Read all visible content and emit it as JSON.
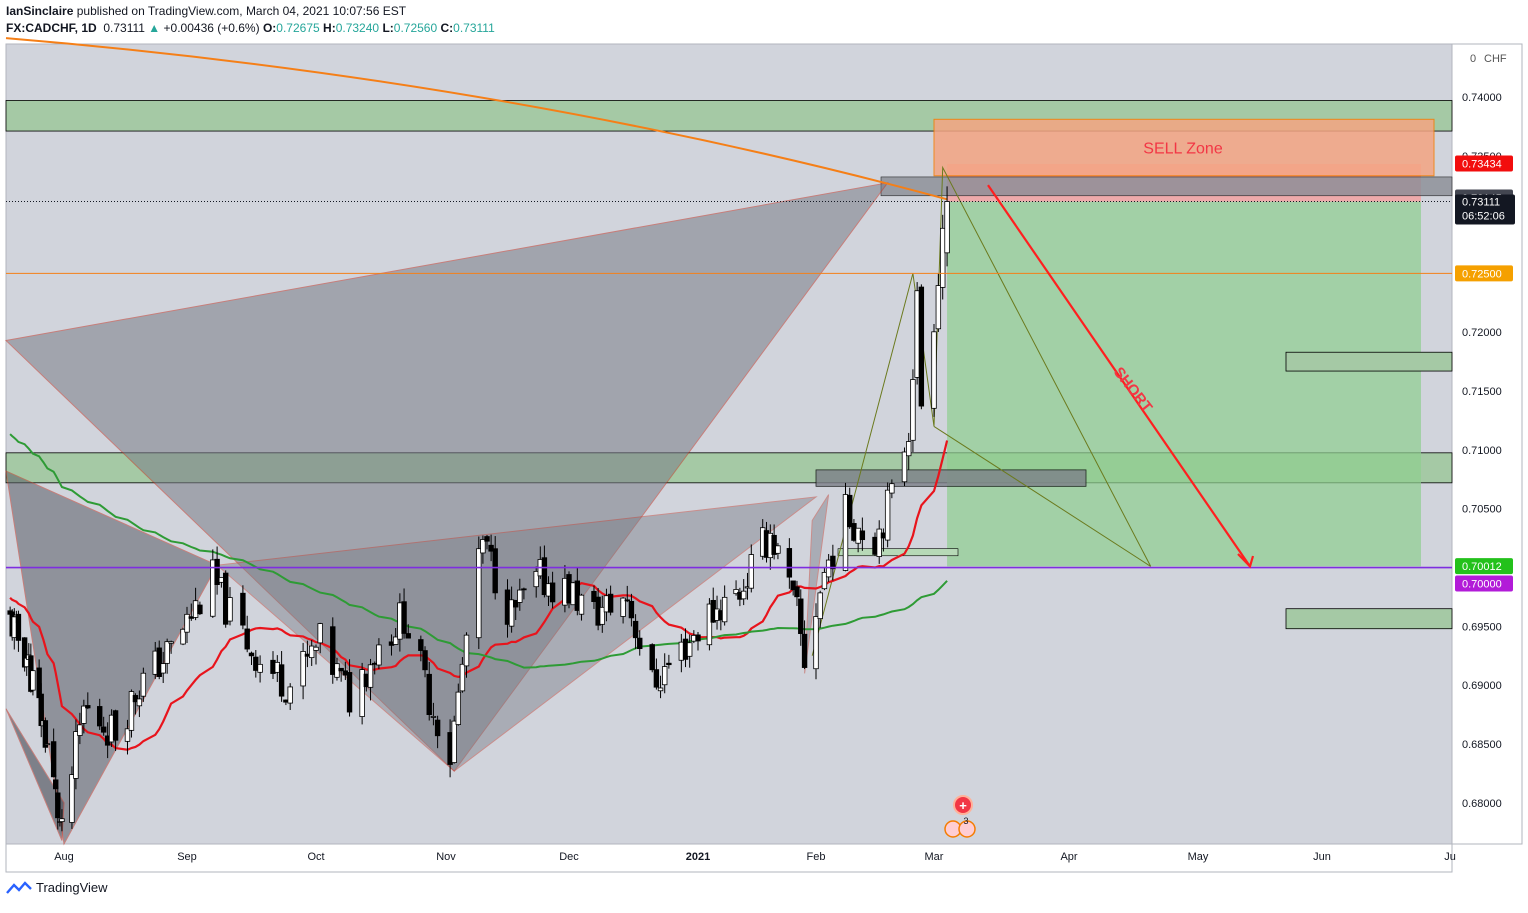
{
  "header": {
    "author": "IanSinclaire",
    "published": "published on TradingView.com, March 04, 2021 10:07:56 EST"
  },
  "symbol_line": {
    "symbol": "FX:CADCHF, 1D",
    "last": "0.73111",
    "change": "+0.00436 (+0.6%)",
    "o_label": "O:",
    "o": "0.72675",
    "h_label": "H:",
    "h": "0.73240",
    "l_label": "L:",
    "l": "0.72560",
    "c_label": "C:",
    "c": "0.73111"
  },
  "footer": {
    "brand": "TradingView"
  },
  "colors": {
    "background": "#d1d4dc",
    "up_candle": "#ffffff",
    "down_candle": "#000000",
    "ma_fast": "#e8141c",
    "ma_slow": "#2e9b35",
    "ma_long": "#f57f17",
    "sell_zone": "#f4a582",
    "target_zone": "#8fce8f",
    "support_line": "#7e2de0",
    "arrow": "#ff1f1f"
  },
  "chart_data": {
    "type": "candlestick",
    "currency": "CHF",
    "ylim": [
      0.6765,
      0.7445
    ],
    "y_ticks": [
      "0.68000",
      "0.68500",
      "0.69000",
      "0.69500",
      "0.70000",
      "0.70500",
      "0.71000",
      "0.71500",
      "0.72000",
      "0.72500",
      "0.73000",
      "0.73500",
      "0.74000"
    ],
    "y_tick_values": [
      0.68,
      0.685,
      0.69,
      0.695,
      0.7,
      0.705,
      0.71,
      0.715,
      0.72,
      0.725,
      0.73,
      0.735,
      0.74
    ],
    "x_ticks": [
      {
        "label": "Aug",
        "date": "2020-08-01"
      },
      {
        "label": "Sep",
        "date": "2020-09-01"
      },
      {
        "label": "Oct",
        "date": "2020-10-01"
      },
      {
        "label": "Nov",
        "date": "2020-11-01"
      },
      {
        "label": "Dec",
        "date": "2020-12-01"
      },
      {
        "label": "2021",
        "date": "2021-01-01"
      },
      {
        "label": "Feb",
        "date": "2021-02-01"
      },
      {
        "label": "Mar",
        "date": "2021-03-01"
      },
      {
        "label": "Apr",
        "date": "2021-04-01"
      },
      {
        "label": "May",
        "date": "2021-05-01"
      },
      {
        "label": "Jun",
        "date": "2021-06-01"
      },
      {
        "label": "Ju",
        "date": "2021-07-01"
      }
    ],
    "price_labels": [
      {
        "value": 0.73434,
        "text": "0.73434",
        "color": "#f20d0d"
      },
      {
        "value": 0.73145,
        "text": "0.73145",
        "color": "#434651"
      },
      {
        "value": 0.73111,
        "text": "0.73111",
        "sub": "06:52:06",
        "color": "#131722"
      },
      {
        "value": 0.725,
        "text": "0.72500",
        "color": "#f5a000"
      },
      {
        "value": 0.70012,
        "text": "0.70012",
        "color": "#23c11b"
      },
      {
        "value": 0.7,
        "text": "0.70000",
        "color": "#b21bd8"
      }
    ],
    "top_label": "0",
    "annotations": {
      "sell_zone": "SELL Zone",
      "short": "SHORT",
      "event_count": "3"
    },
    "zones": [
      {
        "kind": "resistance",
        "from": 0.7397,
        "to": 0.7371
      },
      {
        "kind": "support",
        "from": 0.70975,
        "to": 0.7072
      }
    ],
    "horizontal_lines": [
      {
        "value": 0.725,
        "name": "orange-level"
      },
      {
        "value": 0.7,
        "name": "support-level"
      }
    ],
    "candles": []
  }
}
